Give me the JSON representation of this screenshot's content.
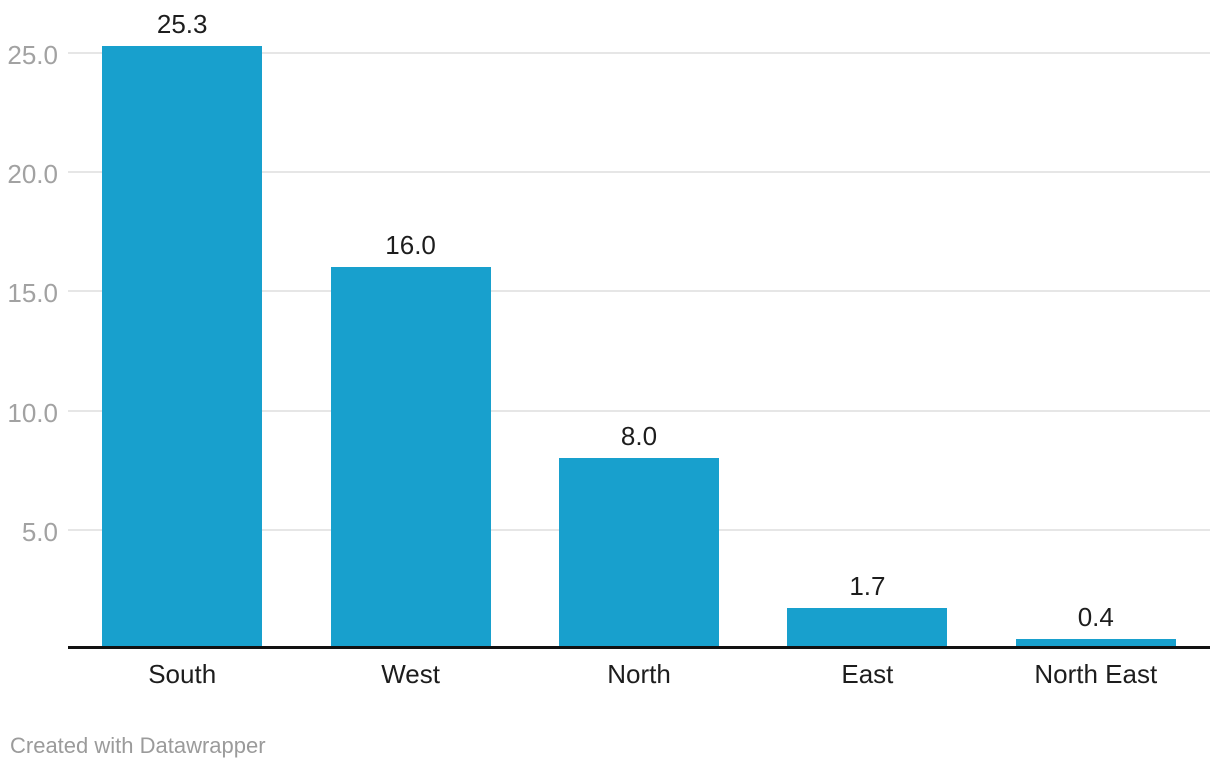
{
  "chart_data": {
    "type": "bar",
    "title": "",
    "categories": [
      "South",
      "West",
      "North",
      "East",
      "North East"
    ],
    "values": [
      25.3,
      16.0,
      8.0,
      1.7,
      0.4
    ],
    "value_labels": [
      "25.3",
      "16.0",
      "8.0",
      "1.7",
      "0.4"
    ],
    "xlabel": "",
    "ylabel": "",
    "ylim": [
      0,
      26
    ],
    "y_ticks": [
      5,
      10,
      15,
      20,
      25
    ],
    "y_tick_labels": [
      "5.0",
      "10.0",
      "15.0",
      "20.0",
      "25.0"
    ],
    "grid": "horizontal",
    "legend": "none"
  },
  "colors": {
    "bar": "#18a0cd",
    "axis_line": "#111111",
    "gridline": "#e6e6e6",
    "tick_label": "#a2a2a2",
    "data_label": "#1d1d1d",
    "category_label": "#1d1d1d",
    "credit": "#9b9b9b",
    "background": "#ffffff"
  },
  "footer": {
    "credit": "Created with Datawrapper"
  }
}
